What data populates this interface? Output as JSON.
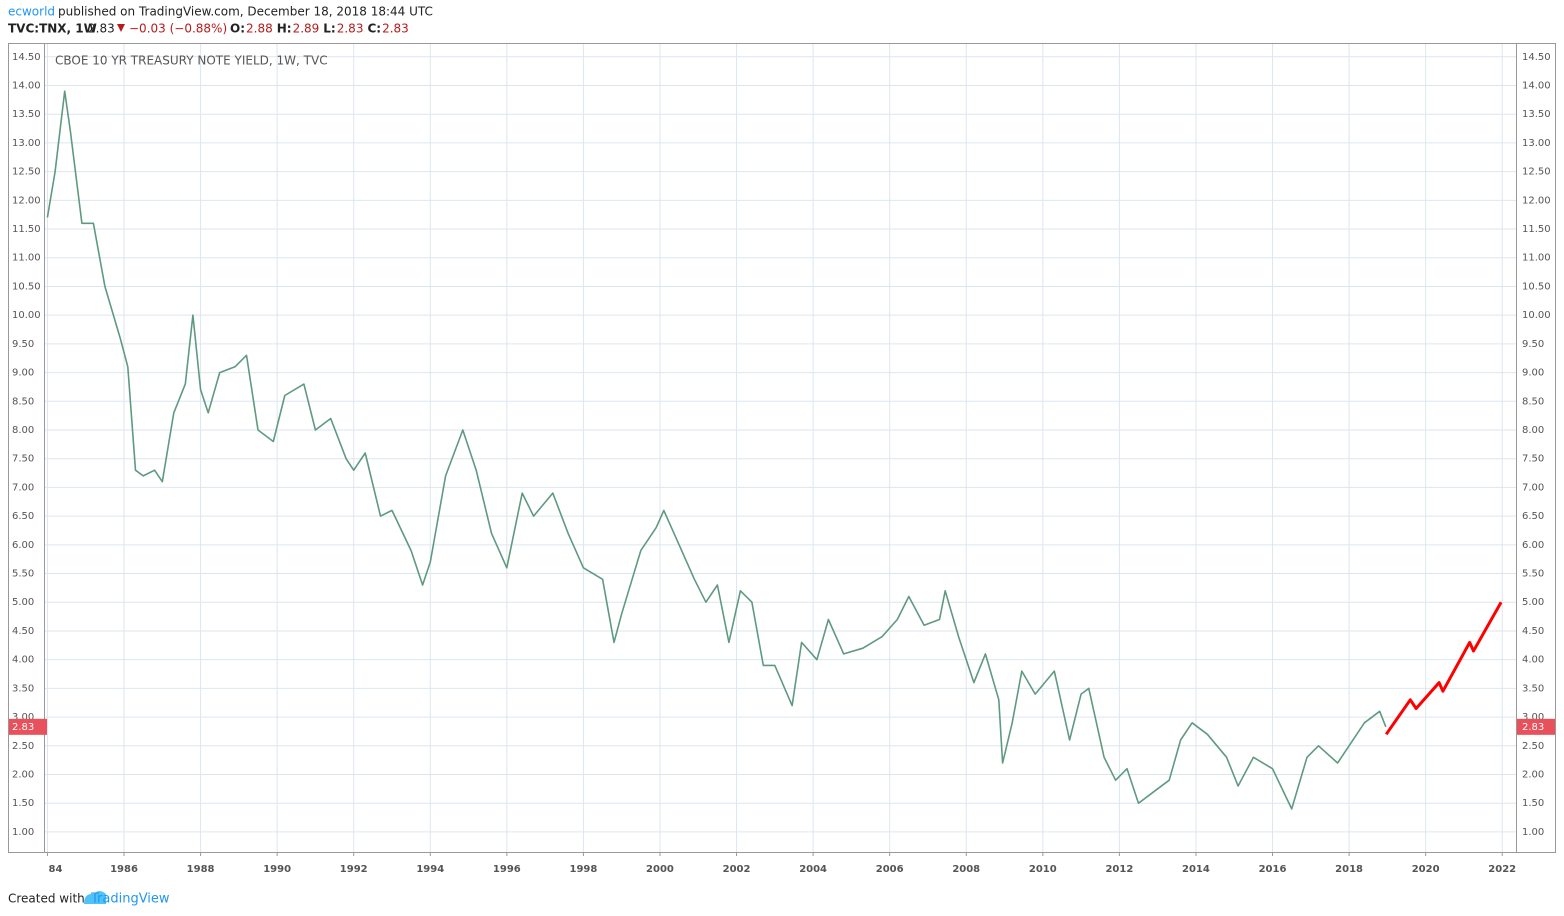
{
  "header": {
    "author": "ecworld",
    "published": "published on TradingView.com, December 18, 2018 18:44 UTC",
    "symbol": "TVC:TNX, 1W",
    "last": "2.83",
    "change": "−0.03 (−0.88%)",
    "ohlc": [
      {
        "label": "O:",
        "value": "2.88"
      },
      {
        "label": "H:",
        "value": "2.89"
      },
      {
        "label": "L:",
        "value": "2.83"
      },
      {
        "label": "C:",
        "value": "2.83"
      }
    ]
  },
  "footer": {
    "text": "Created with",
    "brand": "TradingView"
  },
  "chart_data": {
    "type": "line",
    "title": "CBOE 10 YR TREASURY NOTE YIELD, 1W, TVC",
    "xlim": [
      1983.91,
      2022.36
    ],
    "ylim": [
      0.65,
      14.74
    ],
    "xticks": [
      {
        "value": 1984,
        "label": "84"
      },
      1986,
      1988,
      1990,
      1992,
      1994,
      1996,
      1998,
      2000,
      2002,
      2004,
      2006,
      2008,
      2010,
      2012,
      2014,
      2016,
      2018,
      2020,
      2022
    ],
    "yticks": [
      {
        "value": 1,
        "label": "1.00"
      },
      {
        "value": 1.5,
        "label": "1.50"
      },
      {
        "value": 2,
        "label": "2.00"
      },
      {
        "value": 2.5,
        "label": "2.50"
      },
      {
        "value": 3,
        "label": "3.00"
      },
      {
        "value": 3.5,
        "label": "3.50"
      },
      {
        "value": 4,
        "label": "4.00"
      },
      {
        "value": 4.5,
        "label": "4.50"
      },
      {
        "value": 5,
        "label": "5.00"
      },
      {
        "value": 5.5,
        "label": "5.50"
      },
      {
        "value": 6,
        "label": "6.00"
      },
      {
        "value": 6.5,
        "label": "6.50"
      },
      {
        "value": 7,
        "label": "7.00"
      },
      {
        "value": 7.5,
        "label": "7.50"
      },
      {
        "value": 8,
        "label": "8.00"
      },
      {
        "value": 8.5,
        "label": "8.50"
      },
      {
        "value": 9,
        "label": "9.00"
      },
      {
        "value": 9.5,
        "label": "9.50"
      },
      {
        "value": 10,
        "label": "10.00"
      },
      {
        "value": 10.5,
        "label": "10.50"
      },
      {
        "value": 11,
        "label": "11.00"
      },
      {
        "value": 11.5,
        "label": "11.50"
      },
      {
        "value": 12,
        "label": "12.00"
      },
      {
        "value": 12.5,
        "label": "12.50"
      },
      {
        "value": 13,
        "label": "13.00"
      },
      {
        "value": 13.5,
        "label": "13.50"
      },
      {
        "value": 14,
        "label": "14.00"
      },
      {
        "value": 14.5,
        "label": "14.50"
      }
    ],
    "grid": true,
    "last_price": 2.83,
    "last_price_color": "#e8505b",
    "series": [
      {
        "color": "#5f9a80",
        "x": [
          1984.0,
          1984.2,
          1984.45,
          1984.6,
          1984.9,
          1985.2,
          1985.5,
          1985.9,
          1986.1,
          1986.3,
          1986.5,
          1986.8,
          1987.0,
          1987.3,
          1987.6,
          1987.8,
          1988.0,
          1988.2,
          1988.5,
          1988.9,
          1989.2,
          1989.5,
          1989.9,
          1990.2,
          1990.7,
          1991.0,
          1991.4,
          1991.8,
          1992.0,
          1992.3,
          1992.7,
          1993.0,
          1993.5,
          1993.8,
          1994.0,
          1994.4,
          1994.85,
          1995.2,
          1995.6,
          1996.0,
          1996.4,
          1996.7,
          1997.2,
          1997.6,
          1998.0,
          1998.5,
          1998.8,
          1999.0,
          1999.5,
          1999.9,
          2000.1,
          2000.5,
          2000.9,
          2001.2,
          2001.5,
          2001.8,
          2002.1,
          2002.4,
          2002.7,
          2003.0,
          2003.45,
          2003.7,
          2004.1,
          2004.4,
          2004.8,
          2005.3,
          2005.8,
          2006.2,
          2006.5,
          2006.9,
          2007.3,
          2007.45,
          2007.8,
          2008.2,
          2008.5,
          2008.85,
          2008.95,
          2009.2,
          2009.45,
          2009.8,
          2010.3,
          2010.7,
          2011.0,
          2011.2,
          2011.6,
          2011.9,
          2012.2,
          2012.5,
          2012.9,
          2013.3,
          2013.6,
          2013.9,
          2014.3,
          2014.8,
          2015.1,
          2015.5,
          2016.0,
          2016.5,
          2016.9,
          2017.2,
          2017.7,
          2018.0,
          2018.4,
          2018.8,
          2018.96
        ],
        "values": [
          11.7,
          12.5,
          13.9,
          13.2,
          11.6,
          11.6,
          10.5,
          9.6,
          9.1,
          7.3,
          7.2,
          7.3,
          7.1,
          8.3,
          8.8,
          10.0,
          8.7,
          8.3,
          9.0,
          9.1,
          9.3,
          8.0,
          7.8,
          8.6,
          8.8,
          8.0,
          8.2,
          7.5,
          7.3,
          7.6,
          6.5,
          6.6,
          5.9,
          5.3,
          5.7,
          7.2,
          8.0,
          7.3,
          6.2,
          5.6,
          6.9,
          6.5,
          6.9,
          6.2,
          5.6,
          5.4,
          4.3,
          4.8,
          5.9,
          6.3,
          6.6,
          6.0,
          5.4,
          5.0,
          5.3,
          4.3,
          5.2,
          5.0,
          3.9,
          3.9,
          3.2,
          4.3,
          4.0,
          4.7,
          4.1,
          4.2,
          4.4,
          4.7,
          5.1,
          4.6,
          4.7,
          5.2,
          4.4,
          3.6,
          4.1,
          3.3,
          2.2,
          2.9,
          3.8,
          3.4,
          3.8,
          2.6,
          3.4,
          3.5,
          2.3,
          1.9,
          2.1,
          1.5,
          1.7,
          1.9,
          2.6,
          2.9,
          2.7,
          2.3,
          1.8,
          2.3,
          2.1,
          1.4,
          2.3,
          2.5,
          2.2,
          2.5,
          2.9,
          3.1,
          2.83
        ]
      },
      {
        "color": "#ff0000",
        "x": [
          2018.97,
          2019.6,
          2019.75,
          2020.35,
          2020.45,
          2021.15,
          2021.25,
          2021.97
        ],
        "values": [
          2.7,
          3.3,
          3.15,
          3.6,
          3.45,
          4.3,
          4.15,
          5.0
        ]
      }
    ]
  }
}
